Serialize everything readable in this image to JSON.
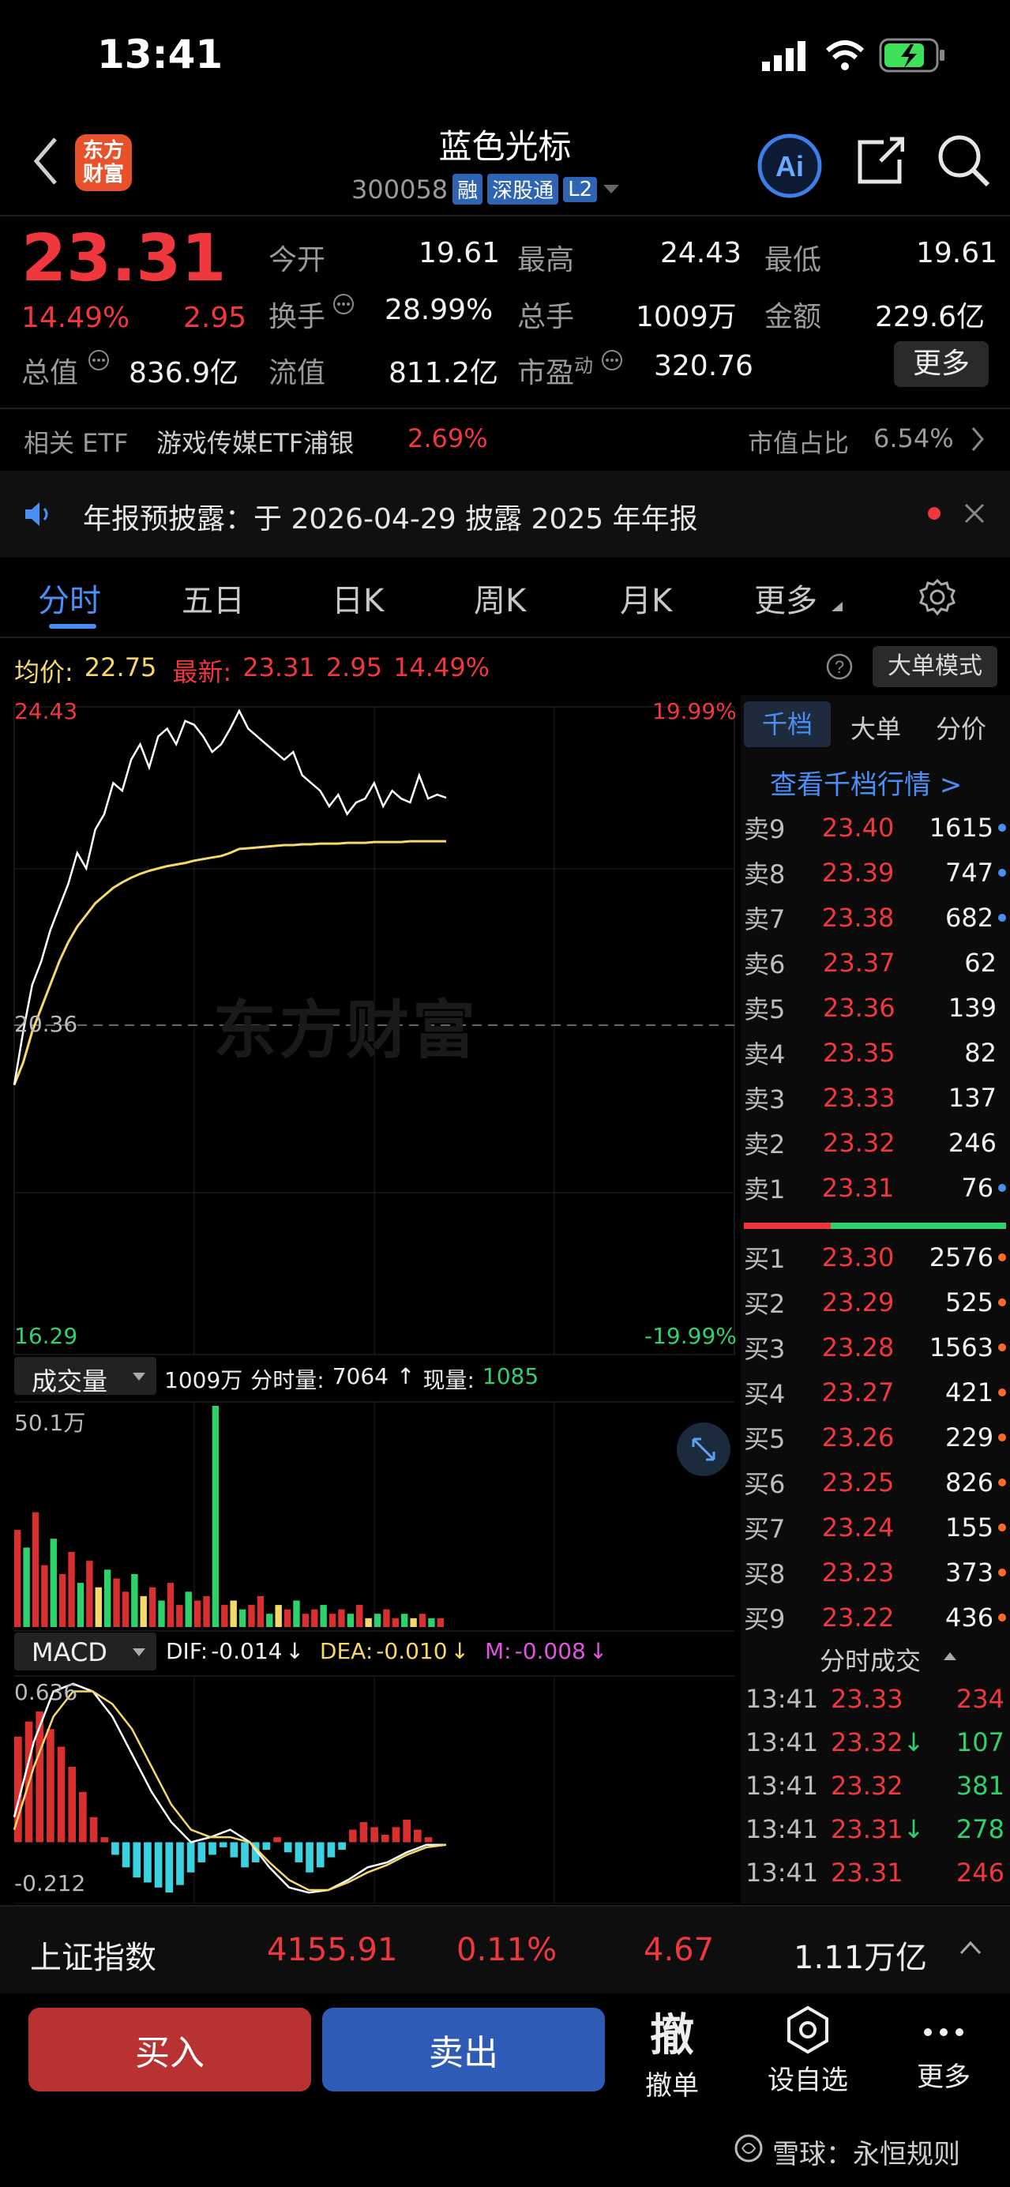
{
  "status_bar": {
    "time": "13:41"
  },
  "header": {
    "logo_text": [
      "东方",
      "财富"
    ],
    "title": "蓝色光标",
    "code": "300058",
    "tags": [
      "融",
      "深股通",
      "L2"
    ],
    "ai_label": "Ai"
  },
  "quote": {
    "price": "23.31",
    "change_pct": "14.49%",
    "change": "2.95",
    "row1": [
      {
        "label": "今开",
        "value": "19.61"
      },
      {
        "label": "最高",
        "value": "24.43"
      },
      {
        "label": "最低",
        "value": "19.61"
      }
    ],
    "row2": [
      {
        "label": "换手",
        "value": "28.99%"
      },
      {
        "label": "总手",
        "value": "1009万"
      },
      {
        "label": "金额",
        "value": "229.6亿"
      }
    ],
    "row3": [
      {
        "label": "总值",
        "value": "836.9亿"
      },
      {
        "label": "流值",
        "value": "811.2亿"
      },
      {
        "label": "市盈",
        "sup": "动",
        "value": "320.76"
      }
    ],
    "more_button": "更多"
  },
  "etf": {
    "label": "相关 ETF",
    "name": "游戏传媒ETF浦银",
    "pct": "2.69%",
    "share_label": "市值占比",
    "share_value": "6.54%"
  },
  "notice": {
    "text": "年报预披露：于 2026-04-29 披露 2025 年年报"
  },
  "tabs": [
    "分时",
    "五日",
    "日K",
    "周K",
    "月K",
    "更多"
  ],
  "chart_info": {
    "avg_label": "均价:",
    "avg_value": "22.75",
    "latest_label": "最新:",
    "latest_value": "23.31",
    "change": "2.95",
    "change_pct": "14.49%",
    "big_order_mode": "大单模式"
  },
  "side_tabs": [
    "千档",
    "大单",
    "分价"
  ],
  "side_link": "查看千档行情 >",
  "chart_data": {
    "type": "line",
    "price_axis": {
      "max": "24.43",
      "min": "16.29",
      "mid": "20.36",
      "max_pct": "19.99%",
      "min_pct": "-19.99%"
    },
    "ylim": [
      16.29,
      24.43
    ],
    "price_series": [
      19.61,
      20.3,
      20.9,
      21.2,
      21.6,
      21.9,
      22.2,
      22.6,
      22.4,
      22.9,
      23.1,
      23.5,
      23.4,
      23.8,
      24.0,
      23.7,
      24.1,
      24.2,
      24.0,
      24.3,
      24.25,
      24.1,
      23.9,
      24.0,
      24.2,
      24.43,
      24.2,
      24.1,
      24.0,
      23.9,
      23.8,
      23.9,
      23.6,
      23.5,
      23.4,
      23.2,
      23.35,
      23.1,
      23.25,
      23.3,
      23.5,
      23.2,
      23.4,
      23.3,
      23.25,
      23.6,
      23.3,
      23.35,
      23.31
    ],
    "avg_series": [
      19.61,
      19.9,
      20.3,
      20.6,
      20.9,
      21.2,
      21.45,
      21.65,
      21.8,
      21.95,
      22.05,
      22.15,
      22.22,
      22.28,
      22.33,
      22.37,
      22.4,
      22.43,
      22.45,
      22.47,
      22.5,
      22.52,
      22.54,
      22.56,
      22.6,
      22.65,
      22.66,
      22.67,
      22.68,
      22.69,
      22.7,
      22.7,
      22.71,
      22.71,
      22.72,
      22.72,
      22.72,
      22.73,
      22.73,
      22.73,
      22.74,
      22.74,
      22.74,
      22.74,
      22.75,
      22.75,
      22.75,
      22.75,
      22.75
    ],
    "volume": {
      "label": "成交量",
      "total": "1009万",
      "per_label": "分时量:",
      "per_value": "7064",
      "now_label": "现量:",
      "now_value": "1085",
      "max_label": "50.1万",
      "values": [
        22,
        18,
        26,
        14,
        20,
        12,
        17,
        10,
        15,
        9,
        13,
        11,
        8,
        12,
        7,
        9,
        6,
        10,
        5,
        8,
        6,
        7,
        50.1,
        5,
        6,
        4,
        5,
        7,
        3,
        5,
        4,
        6,
        3,
        4,
        5,
        3,
        4,
        3,
        5,
        2,
        3,
        4,
        2,
        3,
        2,
        3,
        2,
        2
      ]
    },
    "macd": {
      "label": "MACD",
      "dif_label": "DIF:",
      "dif": "-0.014",
      "dea_label": "DEA:",
      "dea": "-0.010",
      "m_label": "M:",
      "m": "-0.008",
      "ymax": "0.636",
      "ymin": "-0.212",
      "hist": [
        0.42,
        0.48,
        0.52,
        0.45,
        0.38,
        0.3,
        0.2,
        0.1,
        0.02,
        -0.05,
        -0.1,
        -0.14,
        -0.16,
        -0.18,
        -0.2,
        -0.17,
        -0.12,
        -0.08,
        -0.05,
        -0.02,
        -0.06,
        -0.1,
        -0.08,
        -0.03,
        0.02,
        -0.04,
        -0.08,
        -0.12,
        -0.1,
        -0.06,
        -0.03,
        0.05,
        0.08,
        0.06,
        0.03,
        0.06,
        0.09,
        0.05,
        0.02,
        0.0
      ],
      "dif_line": [
        0.1,
        0.4,
        0.6,
        0.63,
        0.6,
        0.5,
        0.35,
        0.2,
        0.08,
        0.0,
        0.02,
        0.05,
        0.0,
        -0.1,
        -0.18,
        -0.2,
        -0.19,
        -0.15,
        -0.1,
        -0.08,
        -0.04,
        -0.01,
        -0.01
      ],
      "dea_line": [
        0.05,
        0.3,
        0.5,
        0.6,
        0.6,
        0.55,
        0.45,
        0.3,
        0.15,
        0.05,
        0.02,
        0.02,
        0.0,
        -0.08,
        -0.15,
        -0.19,
        -0.19,
        -0.16,
        -0.12,
        -0.09,
        -0.05,
        -0.02,
        -0.01
      ]
    }
  },
  "order_book": {
    "sell": [
      {
        "name": "卖9",
        "price": "23.40",
        "qty": "1615"
      },
      {
        "name": "卖8",
        "price": "23.39",
        "qty": "747"
      },
      {
        "name": "卖7",
        "price": "23.38",
        "qty": "682"
      },
      {
        "name": "卖6",
        "price": "23.37",
        "qty": "62"
      },
      {
        "name": "卖5",
        "price": "23.36",
        "qty": "139"
      },
      {
        "name": "卖4",
        "price": "23.35",
        "qty": "82"
      },
      {
        "name": "卖3",
        "price": "23.33",
        "qty": "137"
      },
      {
        "name": "卖2",
        "price": "23.32",
        "qty": "246"
      },
      {
        "name": "卖1",
        "price": "23.31",
        "qty": "76"
      }
    ],
    "buy": [
      {
        "name": "买1",
        "price": "23.30",
        "qty": "2576"
      },
      {
        "name": "买2",
        "price": "23.29",
        "qty": "525"
      },
      {
        "name": "买3",
        "price": "23.28",
        "qty": "1563"
      },
      {
        "name": "买4",
        "price": "23.27",
        "qty": "421"
      },
      {
        "name": "买5",
        "price": "23.26",
        "qty": "229"
      },
      {
        "name": "买6",
        "price": "23.25",
        "qty": "826"
      },
      {
        "name": "买7",
        "price": "23.24",
        "qty": "155"
      },
      {
        "name": "买8",
        "price": "23.23",
        "qty": "373"
      },
      {
        "name": "买9",
        "price": "23.22",
        "qty": "436"
      }
    ]
  },
  "trades": {
    "title": "分时成交",
    "rows": [
      {
        "time": "13:41",
        "price": "23.33",
        "qty": "234"
      },
      {
        "time": "13:41",
        "price": "23.32↓",
        "qty": "107"
      },
      {
        "time": "13:41",
        "price": "23.32",
        "qty": "381"
      },
      {
        "time": "13:41",
        "price": "23.31↓",
        "qty": "278"
      },
      {
        "time": "13:41",
        "price": "23.31",
        "qty": "246"
      }
    ]
  },
  "index_bar": {
    "name": "上证指数",
    "value": "4155.91",
    "pct": "0.11%",
    "change": "4.67",
    "amount": "1.11万亿"
  },
  "bottom": {
    "buy": "买入",
    "sell": "卖出",
    "cancel_glyph": "撤",
    "cancel": "撤单",
    "alert": "设自选",
    "more": "更多"
  },
  "watermark": "东方财富",
  "footer": "雪球：永恒规则"
}
